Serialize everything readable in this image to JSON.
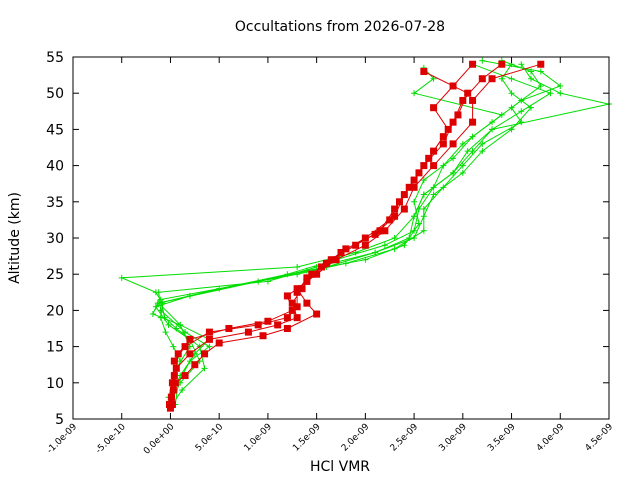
{
  "chart_data": {
    "type": "line",
    "title": "Occultations from 2026-07-28",
    "xlabel": "HCl VMR",
    "ylabel": "Altitude (km)",
    "xlim": [
      -1e-09,
      4.5e-09
    ],
    "ylim": [
      5,
      55
    ],
    "xticks": [
      -1e-09,
      -5e-10,
      0,
      5e-10,
      1e-09,
      1.5e-09,
      2e-09,
      2.5e-09,
      3e-09,
      3.5e-09,
      4e-09,
      4.5e-09
    ],
    "xtick_labels": [
      "-1.0e-09",
      "-5.0e-10",
      "0.0e+00",
      "5.0e-10",
      "1.0e-09",
      "1.5e-09",
      "2.0e-09",
      "2.5e-09",
      "3.0e-09",
      "3.5e-09",
      "4.0e-09",
      "4.5e-09"
    ],
    "yticks": [
      5,
      10,
      15,
      20,
      25,
      30,
      35,
      40,
      45,
      50,
      55
    ],
    "ytick_labels": [
      "5",
      "10",
      "15",
      "20",
      "25",
      "30",
      "35",
      "40",
      "45",
      "50",
      "55"
    ],
    "grid": false,
    "legend": "none",
    "colors": {
      "green": "#00dd00",
      "red": "#dd0000"
    },
    "series": [
      {
        "color": "#00dd00",
        "marker": "plus",
        "points": [
          [
            1e-11,
            7
          ],
          [
            2e-11,
            9
          ],
          [
            5e-11,
            11
          ],
          [
            1e-10,
            13
          ],
          [
            3e-11,
            15
          ],
          [
            -5e-11,
            17
          ],
          [
            -1e-10,
            19
          ],
          [
            -8e-11,
            21
          ],
          [
            -1.5e-10,
            22.5
          ],
          [
            -5e-10,
            24.5
          ],
          [
            1.3e-09,
            26
          ],
          [
            1.9e-09,
            28
          ],
          [
            2.3e-09,
            30
          ],
          [
            2.5e-09,
            33
          ],
          [
            2.6e-09,
            36
          ],
          [
            2.9e-09,
            39
          ],
          [
            3.1e-09,
            42
          ],
          [
            3.3e-09,
            45
          ],
          [
            4.5e-09,
            48.5
          ],
          [
            4e-09,
            50
          ],
          [
            3.7e-09,
            52
          ],
          [
            3.6e-09,
            54
          ]
        ]
      },
      {
        "color": "#00dd00",
        "marker": "plus",
        "points": [
          [
            5e-11,
            7
          ],
          [
            8e-11,
            10
          ],
          [
            2e-10,
            13
          ],
          [
            4e-10,
            15
          ],
          [
            1.5e-10,
            17
          ],
          [
            -1e-10,
            20
          ],
          [
            -1.2e-10,
            22.5
          ],
          [
            1e-09,
            24
          ],
          [
            1.5e-09,
            26
          ],
          [
            2.1e-09,
            28
          ],
          [
            2.5e-09,
            30
          ],
          [
            2.6e-09,
            33
          ],
          [
            2.7e-09,
            36
          ],
          [
            3e-09,
            39
          ],
          [
            3.2e-09,
            42
          ],
          [
            3.5e-09,
            45
          ],
          [
            3.7e-09,
            48
          ],
          [
            3.5e-09,
            50
          ],
          [
            3.4e-09,
            52
          ],
          [
            3.5e-09,
            54
          ]
        ]
      },
      {
        "color": "#00dd00",
        "marker": "plus",
        "points": [
          [
            -1e-11,
            7
          ],
          [
            1e-10,
            10
          ],
          [
            3e-10,
            13
          ],
          [
            2e-10,
            16
          ],
          [
            -2e-11,
            18
          ],
          [
            -1.5e-10,
            20.5
          ],
          [
            2e-10,
            22
          ],
          [
            1.2e-09,
            25
          ],
          [
            1.7e-09,
            27
          ],
          [
            2.2e-09,
            29
          ],
          [
            2.5e-09,
            31
          ],
          [
            2.55e-09,
            34
          ],
          [
            2.7e-09,
            37
          ],
          [
            2.8e-09,
            40
          ],
          [
            3e-09,
            43
          ],
          [
            3.3e-09,
            46
          ],
          [
            3.6e-09,
            49
          ],
          [
            4e-09,
            51
          ],
          [
            3.8e-09,
            53
          ],
          [
            3.2e-09,
            54.5
          ]
        ]
      },
      {
        "color": "#00dd00",
        "marker": "plus",
        "points": [
          [
            0,
            8
          ],
          [
            1e-10,
            11
          ],
          [
            2.5e-10,
            14
          ],
          [
            4e-10,
            16
          ],
          [
            1e-10,
            18
          ],
          [
            -1.2e-10,
            21
          ],
          [
            5e-10,
            23
          ],
          [
            1.4e-09,
            25.5
          ],
          [
            2e-09,
            27
          ],
          [
            2.4e-09,
            29
          ],
          [
            2.55e-09,
            32
          ],
          [
            2.5e-09,
            35
          ],
          [
            2.6e-09,
            38
          ],
          [
            2.9e-09,
            41
          ],
          [
            3.1e-09,
            44
          ],
          [
            3.4e-09,
            47
          ],
          [
            2.5e-09,
            50
          ],
          [
            2.7e-09,
            52
          ],
          [
            2.6e-09,
            53.5
          ]
        ]
      },
      {
        "color": "#00dd00",
        "marker": "plus",
        "points": [
          [
            2e-11,
            7
          ],
          [
            1.2e-10,
            9
          ],
          [
            3.5e-10,
            12
          ],
          [
            3e-10,
            15
          ],
          [
            6e-11,
            17.5
          ],
          [
            -6e-11,
            19
          ],
          [
            -1e-10,
            21.5
          ],
          [
            1.3e-09,
            25
          ],
          [
            1.8e-09,
            26.5
          ],
          [
            2.3e-09,
            28.5
          ],
          [
            2.6e-09,
            31
          ],
          [
            2.6e-09,
            34
          ],
          [
            2.8e-09,
            37
          ],
          [
            3e-09,
            40
          ],
          [
            3.2e-09,
            43
          ],
          [
            3.6e-09,
            46
          ],
          [
            3.5e-09,
            48
          ],
          [
            3.8e-09,
            51
          ],
          [
            3.7e-09,
            53
          ],
          [
            3.4e-09,
            54.5
          ]
        ]
      },
      {
        "color": "#00dd00",
        "marker": "plus",
        "points": [
          [
            -2e-11,
            8
          ],
          [
            6e-11,
            12
          ],
          [
            2e-10,
            15
          ],
          [
            1e-10,
            18
          ],
          [
            -1.8e-10,
            19.5
          ],
          [
            -1.3e-10,
            21
          ],
          [
            9e-10,
            24
          ],
          [
            1.6e-09,
            26
          ],
          [
            2.1e-09,
            28
          ],
          [
            2.45e-09,
            30
          ],
          [
            2.5e-09,
            33
          ],
          [
            2.6e-09,
            36
          ],
          [
            2.9e-09,
            39
          ],
          [
            3.05e-09,
            42
          ],
          [
            3.3e-09,
            45
          ],
          [
            3.6e-09,
            47.5
          ],
          [
            3.9e-09,
            50
          ],
          [
            3.5e-09,
            52
          ],
          [
            3.1e-09,
            54
          ]
        ]
      },
      {
        "color": "#dd0000",
        "marker": "square",
        "points": [
          [
            0,
            6.5
          ],
          [
            1e-11,
            8
          ],
          [
            5e-11,
            10
          ],
          [
            1.5e-10,
            11
          ],
          [
            2.5e-10,
            12.5
          ],
          [
            3.5e-10,
            14
          ],
          [
            5e-10,
            15.5
          ],
          [
            9.5e-10,
            16.5
          ],
          [
            1.2e-09,
            17.5
          ],
          [
            1.5e-09,
            19.5
          ],
          [
            1.4e-09,
            21
          ],
          [
            1.3e-09,
            23
          ],
          [
            1.5e-09,
            25
          ],
          [
            1.7e-09,
            27
          ],
          [
            2e-09,
            29
          ],
          [
            2.2e-09,
            31
          ],
          [
            2.4e-09,
            34
          ],
          [
            2.5e-09,
            37
          ],
          [
            2.7e-09,
            40
          ],
          [
            2.9e-09,
            43
          ],
          [
            3.1e-09,
            46
          ],
          [
            3.1e-09,
            49
          ],
          [
            3.3e-09,
            52
          ],
          [
            3.8e-09,
            54
          ]
        ]
      },
      {
        "color": "#dd0000",
        "marker": "square",
        "points": [
          [
            2e-11,
            7
          ],
          [
            3e-11,
            9
          ],
          [
            6e-11,
            12
          ],
          [
            2e-10,
            14
          ],
          [
            4e-10,
            16
          ],
          [
            8e-10,
            17
          ],
          [
            1.1e-09,
            18
          ],
          [
            1.3e-09,
            19
          ],
          [
            1.25e-09,
            21
          ],
          [
            1.35e-09,
            23
          ],
          [
            1.45e-09,
            25
          ],
          [
            1.65e-09,
            27
          ],
          [
            1.9e-09,
            29
          ],
          [
            2.15e-09,
            31
          ],
          [
            2.3e-09,
            34
          ],
          [
            2.45e-09,
            37
          ],
          [
            2.6e-09,
            40
          ],
          [
            2.8e-09,
            43
          ],
          [
            2.9e-09,
            46
          ],
          [
            3e-09,
            49
          ],
          [
            3.2e-09,
            52
          ],
          [
            3.4e-09,
            54
          ]
        ]
      },
      {
        "color": "#dd0000",
        "marker": "square",
        "points": [
          [
            -1e-11,
            7
          ],
          [
            2e-11,
            10
          ],
          [
            4e-11,
            13
          ],
          [
            1.5e-10,
            15
          ],
          [
            4e-10,
            17
          ],
          [
            9e-10,
            18
          ],
          [
            1.2e-09,
            19
          ],
          [
            1.3e-09,
            20.5
          ],
          [
            1.3e-09,
            22.5
          ],
          [
            1.4e-09,
            24.5
          ],
          [
            1.6e-09,
            26.5
          ],
          [
            1.8e-09,
            28.5
          ],
          [
            2.1e-09,
            30.5
          ],
          [
            2.3e-09,
            33
          ],
          [
            2.4e-09,
            36
          ],
          [
            2.55e-09,
            39
          ],
          [
            2.7e-09,
            42
          ],
          [
            2.85e-09,
            45
          ],
          [
            2.7e-09,
            48
          ],
          [
            2.9e-09,
            51
          ],
          [
            3.1e-09,
            54
          ]
        ]
      },
      {
        "color": "#dd0000",
        "marker": "square",
        "points": [
          [
            1e-11,
            8
          ],
          [
            4e-11,
            11
          ],
          [
            8e-11,
            14
          ],
          [
            2e-10,
            16
          ],
          [
            6e-10,
            17.5
          ],
          [
            1e-09,
            18.5
          ],
          [
            1.25e-09,
            20
          ],
          [
            1.2e-09,
            22
          ],
          [
            1.4e-09,
            24
          ],
          [
            1.55e-09,
            26
          ],
          [
            1.75e-09,
            28
          ],
          [
            2e-09,
            30
          ],
          [
            2.25e-09,
            32.5
          ],
          [
            2.35e-09,
            35
          ],
          [
            2.5e-09,
            38
          ],
          [
            2.65e-09,
            41
          ],
          [
            2.8e-09,
            44
          ],
          [
            2.95e-09,
            47
          ],
          [
            3.05e-09,
            50
          ],
          [
            2.6e-09,
            53
          ]
        ]
      }
    ]
  }
}
